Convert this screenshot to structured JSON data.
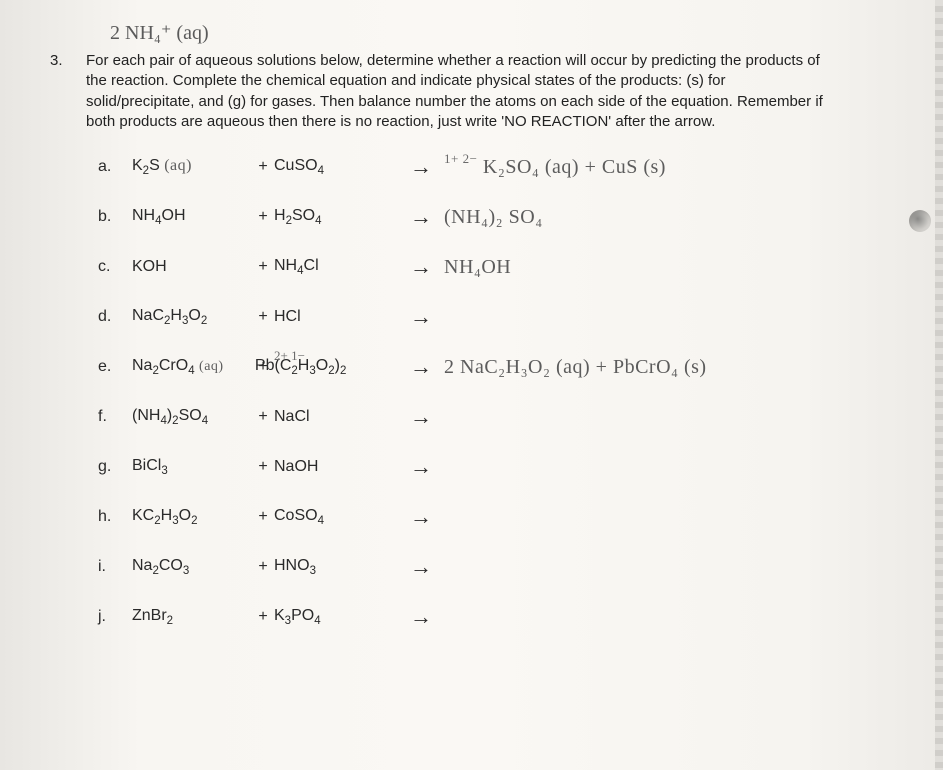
{
  "header_handwriting": "2 NH₄⁺ (aq)",
  "question": {
    "number": "3.",
    "text": "For each pair of aqueous solutions below, determine whether a reaction will occur by predicting the products of the reaction. Complete the chemical equation and indicate physical states of the products: (s) for solid/precipitate, and (g) for gases. Then balance number the atoms on each side of the equation. Remember if both products are aqueous then there is no reaction, just write 'NO REACTION' after the arrow."
  },
  "rows": [
    {
      "letter": "a.",
      "r1": "K₂S (aq)",
      "r2": "CuSO₄",
      "hand": "K₂SO₄ (aq) + CuS (s)",
      "sup": "1+   2−"
    },
    {
      "letter": "b.",
      "r1": "NH₄OH",
      "r2": "H₂SO₄",
      "hand": "(NH₄)₂ SO₄",
      "sup": ""
    },
    {
      "letter": "c.",
      "r1": "KOH",
      "r2": "NH₄Cl",
      "hand": "NH₄OH",
      "sup": ""
    },
    {
      "letter": "d.",
      "r1": "NaC₂H₃O₂",
      "r2": "HCl",
      "hand": "",
      "sup": ""
    },
    {
      "letter": "e.",
      "r1": "Na₂CrO₄",
      "r2": "Pb(C₂H₃O₂)₂",
      "hand": "2 NaC₂H₃O₂ (aq) + PbCrO₄ (s)",
      "sup": "2+   1−"
    },
    {
      "letter": "f.",
      "r1": "(NH₄)₂SO₄",
      "r2": "NaCl",
      "hand": "",
      "sup": ""
    },
    {
      "letter": "g.",
      "r1": "BiCl₃",
      "r2": "NaOH",
      "hand": "",
      "sup": ""
    },
    {
      "letter": "h.",
      "r1": "KC₂H₃O₂",
      "r2": "CoSO₄",
      "hand": "",
      "sup": ""
    },
    {
      "letter": "i.",
      "r1": "Na₂CO₃",
      "r2": "HNO₃",
      "hand": "",
      "sup": ""
    },
    {
      "letter": "j.",
      "r1": "ZnBr₂",
      "r2": "K₃PO₄",
      "hand": "",
      "sup": ""
    }
  ],
  "hand_aq_note_a": "(aq)",
  "hand_aq_note_e": "(aq)"
}
